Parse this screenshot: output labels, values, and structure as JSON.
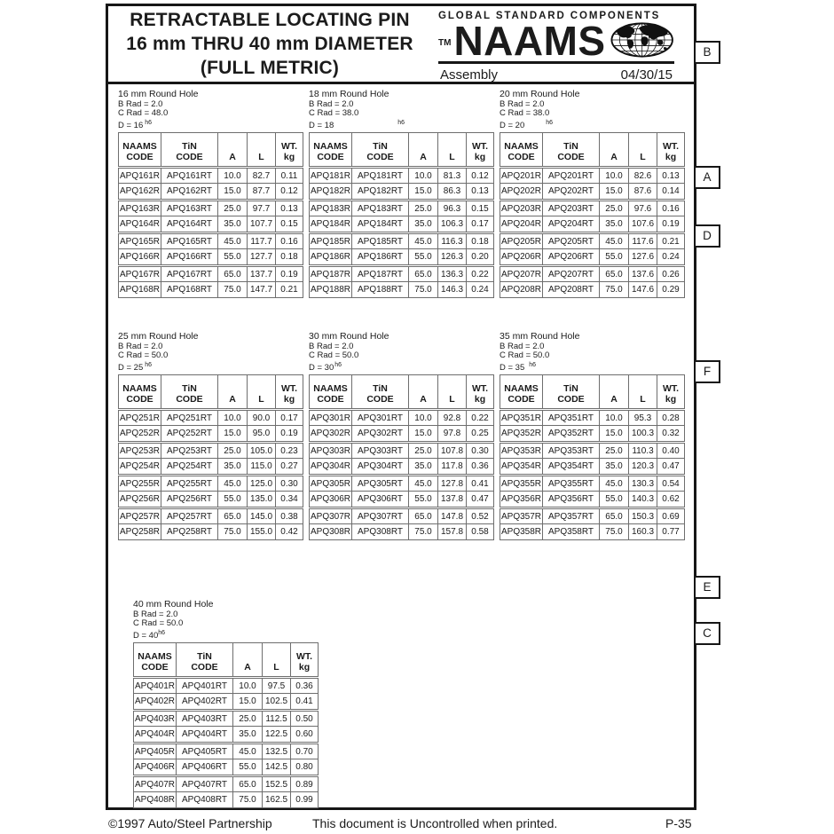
{
  "document": {
    "title_lines": [
      "RETRACTABLE LOCATING PIN",
      "16 mm THRU 40 mm DIAMETER",
      "(FULL METRIC)"
    ],
    "logo": {
      "tagline": "GLOBAL STANDARD COMPONENTS",
      "trademark": "TM",
      "brand": "NAAMS",
      "globe_icon": "globe-icon",
      "assembly": "Assembly",
      "date": "04/30/15"
    },
    "side_labels": [
      "B",
      "A",
      "D",
      "F",
      "E",
      "C"
    ],
    "footer": {
      "left": "©1997 Auto/Steel Partnership",
      "center": "This document is Uncontrolled when printed.",
      "right": "P-35"
    }
  },
  "column_headers": [
    {
      "line1": "NAAMS",
      "line2": "CODE"
    },
    {
      "line1": "TiN",
      "line2": "CODE"
    },
    {
      "line1": "",
      "line2": "A"
    },
    {
      "line1": "",
      "line2": "L"
    },
    {
      "line1": "WT.",
      "line2": "kg"
    }
  ],
  "tables": [
    {
      "title": "16 mm Round Hole",
      "spec_b": "B Rad = 2.0",
      "spec_c": "C Rad = 48.0",
      "spec_d": "D = 16",
      "spec_d_sup": "h6",
      "rows": [
        [
          "APQ161R",
          "APQ161RT",
          "10.0",
          "82.7",
          "0.11"
        ],
        [
          "APQ162R",
          "APQ162RT",
          "15.0",
          "87.7",
          "0.12"
        ],
        [
          "APQ163R",
          "APQ163RT",
          "25.0",
          "97.7",
          "0.13"
        ],
        [
          "APQ164R",
          "APQ164RT",
          "35.0",
          "107.7",
          "0.15"
        ],
        [
          "APQ165R",
          "APQ165RT",
          "45.0",
          "117.7",
          "0.16"
        ],
        [
          "APQ166R",
          "APQ166RT",
          "55.0",
          "127.7",
          "0.18"
        ],
        [
          "APQ167R",
          "APQ167RT",
          "65.0",
          "137.7",
          "0.19"
        ],
        [
          "APQ168R",
          "APQ168RT",
          "75.0",
          "147.7",
          "0.21"
        ]
      ]
    },
    {
      "title": "18 mm Round Hole",
      "spec_b": "B Rad = 2.0",
      "spec_c": "C Rad = 38.0",
      "spec_d": "D = 18",
      "spec_d_sup": "h6",
      "rows": [
        [
          "APQ181R",
          "APQ181RT",
          "10.0",
          "81.3",
          "0.12"
        ],
        [
          "APQ182R",
          "APQ182RT",
          "15.0",
          "86.3",
          "0.13"
        ],
        [
          "APQ183R",
          "APQ183RT",
          "25.0",
          "96.3",
          "0.15"
        ],
        [
          "APQ184R",
          "APQ184RT",
          "35.0",
          "106.3",
          "0.17"
        ],
        [
          "APQ185R",
          "APQ185RT",
          "45.0",
          "116.3",
          "0.18"
        ],
        [
          "APQ186R",
          "APQ186RT",
          "55.0",
          "126.3",
          "0.20"
        ],
        [
          "APQ187R",
          "APQ187RT",
          "65.0",
          "136.3",
          "0.22"
        ],
        [
          "APQ188R",
          "APQ188RT",
          "75.0",
          "146.3",
          "0.24"
        ]
      ]
    },
    {
      "title": "20 mm Round Hole",
      "spec_b": "B Rad = 2.0",
      "spec_c": "C Rad = 38.0",
      "spec_d": "D = 20",
      "spec_d_sup": "h6",
      "rows": [
        [
          "APQ201R",
          "APQ201RT",
          "10.0",
          "82.6",
          "0.13"
        ],
        [
          "APQ202R",
          "APQ202RT",
          "15.0",
          "87.6",
          "0.14"
        ],
        [
          "APQ203R",
          "APQ203RT",
          "25.0",
          "97.6",
          "0.16"
        ],
        [
          "APQ204R",
          "APQ204RT",
          "35.0",
          "107.6",
          "0.19"
        ],
        [
          "APQ205R",
          "APQ205RT",
          "45.0",
          "117.6",
          "0.21"
        ],
        [
          "APQ206R",
          "APQ206RT",
          "55.0",
          "127.6",
          "0.24"
        ],
        [
          "APQ207R",
          "APQ207RT",
          "65.0",
          "137.6",
          "0.26"
        ],
        [
          "APQ208R",
          "APQ208RT",
          "75.0",
          "147.6",
          "0.29"
        ]
      ]
    },
    {
      "title": "25 mm Round Hole",
      "spec_b": "B Rad = 2.0",
      "spec_c": "C Rad = 50.0",
      "spec_d": "D = 25",
      "spec_d_sup": "h6",
      "rows": [
        [
          "APQ251R",
          "APQ251RT",
          "10.0",
          "90.0",
          "0.17"
        ],
        [
          "APQ252R",
          "APQ252RT",
          "15.0",
          "95.0",
          "0.19"
        ],
        [
          "APQ253R",
          "APQ253RT",
          "25.0",
          "105.0",
          "0.23"
        ],
        [
          "APQ254R",
          "APQ254RT",
          "35.0",
          "115.0",
          "0.27"
        ],
        [
          "APQ255R",
          "APQ255RT",
          "45.0",
          "125.0",
          "0.30"
        ],
        [
          "APQ256R",
          "APQ256RT",
          "55.0",
          "135.0",
          "0.34"
        ],
        [
          "APQ257R",
          "APQ257RT",
          "65.0",
          "145.0",
          "0.38"
        ],
        [
          "APQ258R",
          "APQ258RT",
          "75.0",
          "155.0",
          "0.42"
        ]
      ]
    },
    {
      "title": "30 mm Round Hole",
      "spec_b": "B Rad = 2.0",
      "spec_c": "C Rad = 50.0",
      "spec_d": "D = 30",
      "spec_d_sup": "h6",
      "rows": [
        [
          "APQ301R",
          "APQ301RT",
          "10.0",
          "92.8",
          "0.22"
        ],
        [
          "APQ302R",
          "APQ302RT",
          "15.0",
          "97.8",
          "0.25"
        ],
        [
          "APQ303R",
          "APQ303RT",
          "25.0",
          "107.8",
          "0.30"
        ],
        [
          "APQ304R",
          "APQ304RT",
          "35.0",
          "117.8",
          "0.36"
        ],
        [
          "APQ305R",
          "APQ305RT",
          "45.0",
          "127.8",
          "0.41"
        ],
        [
          "APQ306R",
          "APQ306RT",
          "55.0",
          "137.8",
          "0.47"
        ],
        [
          "APQ307R",
          "APQ307RT",
          "65.0",
          "147.8",
          "0.52"
        ],
        [
          "APQ308R",
          "APQ308RT",
          "75.0",
          "157.8",
          "0.58"
        ]
      ]
    },
    {
      "title": "35 mm Round Hole",
      "spec_b": "B Rad = 2.0",
      "spec_c": "C Rad = 50.0",
      "spec_d": "D = 35",
      "spec_d_sup": "h6",
      "rows": [
        [
          "APQ351R",
          "APQ351RT",
          "10.0",
          "95.3",
          "0.28"
        ],
        [
          "APQ352R",
          "APQ352RT",
          "15.0",
          "100.3",
          "0.32"
        ],
        [
          "APQ353R",
          "APQ353RT",
          "25.0",
          "110.3",
          "0.40"
        ],
        [
          "APQ354R",
          "APQ354RT",
          "35.0",
          "120.3",
          "0.47"
        ],
        [
          "APQ355R",
          "APQ355RT",
          "45.0",
          "130.3",
          "0.54"
        ],
        [
          "APQ356R",
          "APQ356RT",
          "55.0",
          "140.3",
          "0.62"
        ],
        [
          "APQ357R",
          "APQ357RT",
          "65.0",
          "150.3",
          "0.69"
        ],
        [
          "APQ358R",
          "APQ358RT",
          "75.0",
          "160.3",
          "0.77"
        ]
      ]
    },
    {
      "title": "40 mm Round Hole",
      "spec_b": "B Rad = 2.0",
      "spec_c": "C Rad = 50.0",
      "spec_d": "D = 40",
      "spec_d_sup": "h6",
      "rows": [
        [
          "APQ401R",
          "APQ401RT",
          "10.0",
          "97.5",
          "0.36"
        ],
        [
          "APQ402R",
          "APQ402RT",
          "15.0",
          "102.5",
          "0.41"
        ],
        [
          "APQ403R",
          "APQ403RT",
          "25.0",
          "112.5",
          "0.50"
        ],
        [
          "APQ404R",
          "APQ404RT",
          "35.0",
          "122.5",
          "0.60"
        ],
        [
          "APQ405R",
          "APQ405RT",
          "45.0",
          "132.5",
          "0.70"
        ],
        [
          "APQ406R",
          "APQ406RT",
          "55.0",
          "142.5",
          "0.80"
        ],
        [
          "APQ407R",
          "APQ407RT",
          "65.0",
          "152.5",
          "0.89"
        ],
        [
          "APQ408R",
          "APQ408RT",
          "75.0",
          "162.5",
          "0.99"
        ]
      ]
    }
  ]
}
